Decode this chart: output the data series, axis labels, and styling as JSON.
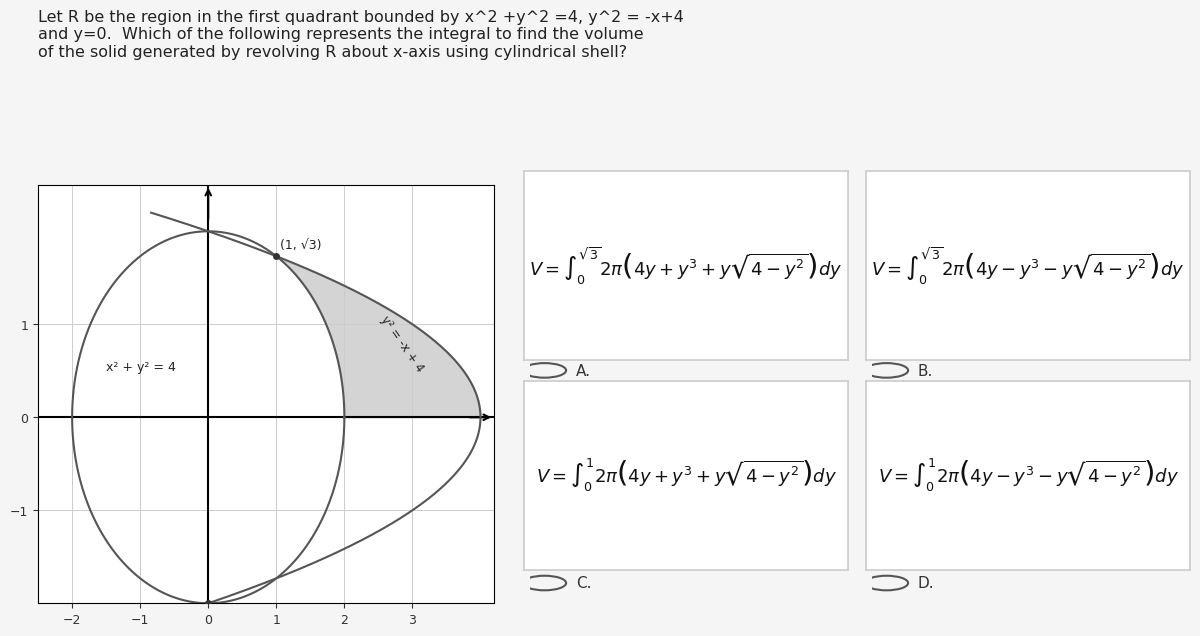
{
  "bg_color": "#f5f5f5",
  "question_text": "Let R be the region in the first quadrant bounded by x^2 +y^2 =4, y^2 = -x+4\nand y=0.  Which of the following represents the integral to find the volume\nof the solid generated by revolving R about x-axis using cylindrical shell?",
  "question_fontsize": 11.5,
  "graph": {
    "xlim": [
      -2.5,
      4.2
    ],
    "ylim": [
      -2.0,
      2.5
    ],
    "xticks": [
      -2,
      -1,
      0,
      1,
      2,
      3
    ],
    "yticks": [
      -1,
      0,
      1
    ],
    "circle_label": "x² + y² = 4",
    "parabola_label": "y² = -x + 4",
    "point_label": "(1, √3)",
    "shaded_color": "#aaaaaa",
    "shaded_alpha": 0.5,
    "curve_color": "#555555",
    "axis_color": "#000000",
    "grid_color": "#cccccc"
  },
  "options": [
    {
      "label": "A.",
      "formula_top": "V = \\int_0^{\\sqrt{3}} 2\\pi\\left(4y + y^3 + y\\sqrt{4 - y^2}\\right)dy",
      "upper_limit": "\\sqrt{3}",
      "lower_limit": "0",
      "integrand": "2\\pi\\left(4y + y^3 + y\\sqrt{4 - y^2}\\right)dy"
    },
    {
      "label": "B.",
      "formula_top": "V = \\int_0^{\\sqrt{3}} 2\\pi\\left(4y - y^3 - y\\sqrt{4 - y^2}\\right)dy",
      "upper_limit": "\\sqrt{3}",
      "lower_limit": "0",
      "integrand": "2\\pi\\left(4y - y^3 - y\\sqrt{4 - y^2}\\right)dy"
    },
    {
      "label": "C.",
      "formula_top": "V = \\int_0^{1} 2\\pi\\left(4y + y^3 + y\\sqrt{4 - y^2}\\right)dy",
      "upper_limit": "1",
      "lower_limit": "0",
      "integrand": "2\\pi\\left(4y + y^3 + y\\sqrt{4 - y^2}\\right)dy"
    },
    {
      "label": "D.",
      "formula_top": "V = \\int_0^{1} 2\\pi\\left(4y - y^3 - y\\sqrt{4 - y^2}\\right)dy",
      "upper_limit": "1",
      "lower_limit": "0",
      "integrand": "2\\pi\\left(4y - y^3 - y\\sqrt{4 - y^2}\\right)dy"
    }
  ],
  "option_positions": [
    [
      0.42,
      0.58
    ],
    [
      0.71,
      0.58
    ],
    [
      0.42,
      0.22
    ],
    [
      0.71,
      0.22
    ]
  ],
  "radio_positions": [
    [
      0.42,
      0.35
    ],
    [
      0.71,
      0.35
    ],
    [
      0.42,
      0.06
    ],
    [
      0.71,
      0.06
    ]
  ]
}
